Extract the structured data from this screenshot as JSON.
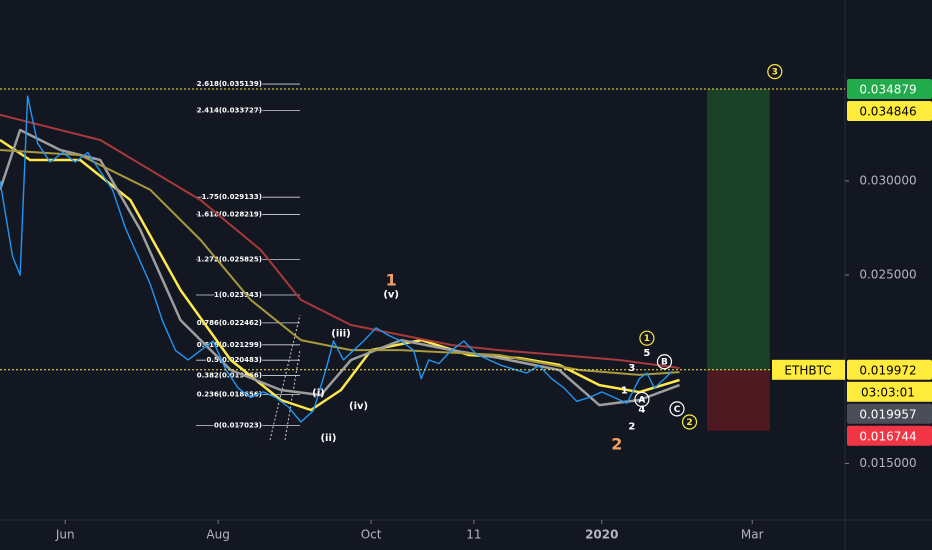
{
  "chart_data": {
    "type": "line",
    "symbol": "ETHBTC",
    "countdown": "03:03:01",
    "xlim": [
      125,
      462
    ],
    "xticks": [
      {
        "value": 151,
        "label": "Jun"
      },
      {
        "value": 212,
        "label": "Aug"
      },
      {
        "value": 273,
        "label": "Oct"
      },
      {
        "value": 314,
        "label": "11"
      },
      {
        "value": 365,
        "label": "2020",
        "bold": true
      },
      {
        "value": 425,
        "label": "Mar"
      }
    ],
    "ylim": [
      0.012,
      0.0396
    ],
    "yticks": [
      {
        "value": 0.015,
        "label": "0.015000"
      },
      {
        "value": 0.025,
        "label": "0.025000"
      },
      {
        "value": 0.03,
        "label": "0.030000"
      }
    ],
    "series": [
      {
        "color": "#2196f3",
        "width": 1.4,
        "x": [
          125,
          130,
          133,
          136,
          140,
          145,
          150,
          155,
          160,
          165,
          170,
          175,
          180,
          185,
          190,
          195,
          200,
          205,
          210,
          215,
          220,
          225,
          230,
          235,
          240,
          245,
          250,
          255,
          258,
          262,
          266,
          270,
          275,
          280,
          285,
          290,
          293,
          296,
          300,
          305,
          310,
          315,
          320,
          325,
          330,
          335,
          340,
          345,
          350,
          355,
          360,
          365,
          370,
          375,
          380,
          383,
          386,
          390,
          393
        ],
        "values": [
          0.03,
          0.026,
          0.025,
          0.0345,
          0.032,
          0.031,
          0.0315,
          0.031,
          0.0315,
          0.0305,
          0.0295,
          0.0275,
          0.026,
          0.0245,
          0.0225,
          0.021,
          0.0205,
          0.021,
          0.0215,
          0.02,
          0.019,
          0.0185,
          0.0188,
          0.0185,
          0.018,
          0.0172,
          0.0178,
          0.02,
          0.0215,
          0.0205,
          0.021,
          0.0215,
          0.0222,
          0.0218,
          0.0215,
          0.021,
          0.0195,
          0.0205,
          0.0203,
          0.021,
          0.0215,
          0.0208,
          0.0205,
          0.0202,
          0.02,
          0.0198,
          0.0202,
          0.0195,
          0.019,
          0.0183,
          0.0185,
          0.0188,
          0.0185,
          0.0182,
          0.0195,
          0.0198,
          0.019,
          0.0195,
          0.0199
        ]
      },
      {
        "color": "#a83a3a",
        "width": 2,
        "x": [
          125,
          165,
          205,
          229,
          245,
          265,
          285,
          305,
          324,
          348,
          372,
          396
        ],
        "values": [
          0.0335,
          0.03217,
          0.02898,
          0.02633,
          0.02368,
          0.02235,
          0.02182,
          0.02129,
          0.02102,
          0.02076,
          0.02049,
          0.02007
        ]
      },
      {
        "color": "#a89a3d",
        "width": 2,
        "x": [
          125,
          157,
          185,
          205,
          225,
          245,
          265,
          285,
          324,
          356,
          380,
          396
        ],
        "values": [
          0.03164,
          0.03137,
          0.02952,
          0.02686,
          0.02368,
          0.02155,
          0.02102,
          0.02102,
          0.02076,
          0.01996,
          0.0197,
          0.01985
        ]
      },
      {
        "color": "#9e9e9e",
        "width": 2.5,
        "x": [
          125,
          133,
          149,
          165,
          181,
          197,
          217,
          237,
          253,
          265,
          285,
          305,
          324,
          348,
          364,
          380,
          396
        ],
        "values": [
          0.02952,
          0.0327,
          0.03164,
          0.03111,
          0.02739,
          0.02261,
          0.01996,
          0.0189,
          0.01863,
          0.02049,
          0.02155,
          0.02102,
          0.0206,
          0.01996,
          0.0181,
          0.01837,
          0.01916
        ]
      },
      {
        "color": "#ffe84d",
        "width": 2.5,
        "x": [
          125,
          137,
          157,
          177,
          197,
          217,
          237,
          249,
          261,
          273,
          293,
          312,
          332,
          348,
          364,
          380,
          396
        ],
        "values": [
          0.03217,
          0.03111,
          0.03111,
          0.02898,
          0.02421,
          0.02049,
          0.01837,
          0.01784,
          0.0189,
          0.02102,
          0.02155,
          0.02076,
          0.0206,
          0.02023,
          0.01916,
          0.01879,
          0.01943
        ]
      }
    ],
    "fib_levels": [
      {
        "value": 0.035139,
        "label": "2.618(0.035139)"
      },
      {
        "value": 0.033727,
        "label": "2.414(0.033727)"
      },
      {
        "value": 0.029133,
        "label": "1.75(0.029133)"
      },
      {
        "value": 0.028219,
        "label": "1.618(0.028219)"
      },
      {
        "value": 0.025825,
        "label": "1.272(0.025825)"
      },
      {
        "value": 0.023943,
        "label": "1(0.023943)"
      },
      {
        "value": 0.022462,
        "label": "0.786(0.022462)"
      },
      {
        "value": 0.021299,
        "label": "0.618(0.021299)"
      },
      {
        "value": 0.020483,
        "label": "0.5(0.020483)"
      },
      {
        "value": 0.019666,
        "label": "0.382(0.019666)"
      },
      {
        "value": 0.018656,
        "label": "0.236(0.018656)"
      },
      {
        "value": 0.017023,
        "label": "0(0.017023)"
      }
    ],
    "price_labels": [
      {
        "value": 0.034879,
        "label": "0.034879",
        "color": "#22ab4b",
        "text_color": "#ffffff",
        "dotted": true
      },
      {
        "value": 0.034846,
        "label": "0.034846",
        "color": "#ffeb3b",
        "text_color": "#000000"
      },
      {
        "value": 0.019972,
        "label": "0.019972",
        "color": "#ffeb3b",
        "text_color": "#000000",
        "dotted": true
      },
      {
        "value": 0.019957,
        "label": "0.019957",
        "color": "#4a4e59",
        "text_color": "#ffffff"
      },
      {
        "value": 0.016744,
        "label": "0.016744",
        "color": "#f23645",
        "text_color": "#ffffff"
      }
    ],
    "position": {
      "x": [
        407,
        432
      ]
    },
    "annotations": [
      {
        "text": "3",
        "x": 434,
        "y": 0.0358,
        "color": "#ffeb3b",
        "circled": true
      },
      {
        "text": "1",
        "x": 281,
        "y": 0.0247,
        "color": "#f0a060",
        "big": true
      },
      {
        "text": "(v)",
        "x": 281,
        "y": 0.024,
        "color": "#ffffff"
      },
      {
        "text": "(iii)",
        "x": 261,
        "y": 0.02192,
        "color": "#ffffff"
      },
      {
        "text": "(i)",
        "x": 252,
        "y": 0.01878,
        "color": "#ffffff"
      },
      {
        "text": "(iv)",
        "x": 268,
        "y": 0.01809,
        "color": "#ffffff"
      },
      {
        "text": "(ii)",
        "x": 256,
        "y": 0.01638,
        "color": "#ffffff"
      },
      {
        "text": "2",
        "x": 371,
        "y": 0.01601,
        "color": "#f0a060",
        "big": true
      },
      {
        "text": "1",
        "x": 383,
        "y": 0.02165,
        "color": "#ffeb3b",
        "circled": true
      },
      {
        "text": "5",
        "x": 383,
        "y": 0.0209,
        "color": "#ffffff"
      },
      {
        "text": "3",
        "x": 377,
        "y": 0.0201,
        "color": "#ffffff"
      },
      {
        "text": "B",
        "x": 390,
        "y": 0.0204,
        "color": "#ffffff",
        "circled": true
      },
      {
        "text": "1",
        "x": 374,
        "y": 0.0189,
        "color": "#ffffff"
      },
      {
        "text": "A",
        "x": 381,
        "y": 0.0184,
        "color": "#ffffff",
        "circled": true
      },
      {
        "text": "4",
        "x": 381,
        "y": 0.0179,
        "color": "#ffffff"
      },
      {
        "text": "C",
        "x": 395,
        "y": 0.0179,
        "color": "#ffffff",
        "circled": true
      },
      {
        "text": "2",
        "x": 377,
        "y": 0.017,
        "color": "#ffffff"
      },
      {
        "text": "2",
        "x": 400,
        "y": 0.0172,
        "color": "#ffeb3b",
        "circled": true
      }
    ]
  }
}
